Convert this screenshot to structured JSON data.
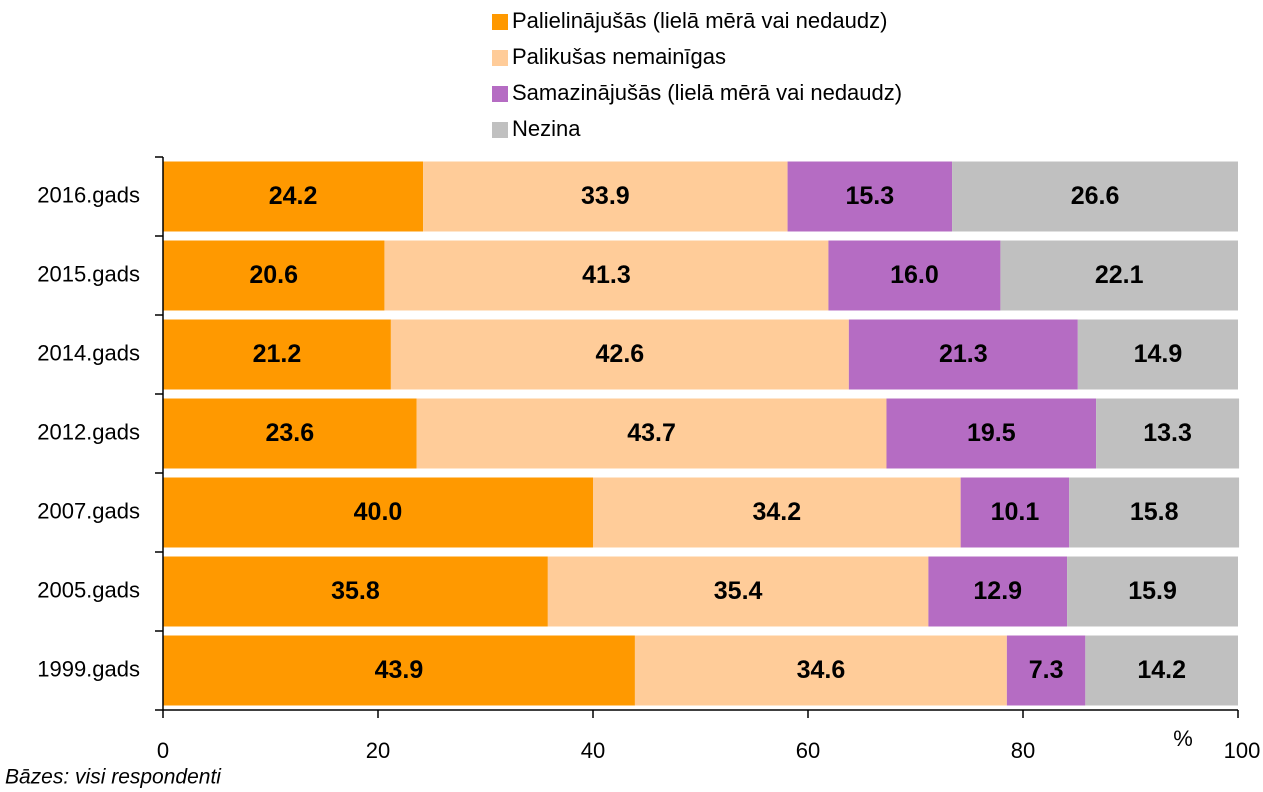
{
  "chart_data": {
    "type": "stacked-barh",
    "categories": [
      "2016.gads",
      "2015.gads",
      "2014.gads",
      "2012.gads",
      "2007.gads",
      "2005.gads",
      "1999.gads"
    ],
    "series": [
      {
        "name": "Palielinājušās (lielā mērā vai nedaudz)",
        "color": "#FF9900",
        "values": [
          24.2,
          20.6,
          21.2,
          23.6,
          40.0,
          35.8,
          43.9
        ],
        "value_labels": [
          "24.2",
          "20.6",
          "21.2",
          "23.6",
          "40.0",
          "35.8",
          "43.9"
        ]
      },
      {
        "name": "Palikušas nemainīgas",
        "color": "#FFCC99",
        "values": [
          33.9,
          41.3,
          42.6,
          43.7,
          34.2,
          35.4,
          34.6
        ],
        "value_labels": [
          "33.9",
          "41.3",
          "42.6",
          "43.7",
          "34.2",
          "35.4",
          "34.6"
        ]
      },
      {
        "name": "Samazinājušās (lielā mērā vai nedaudz)",
        "color": "#B56CC3",
        "values": [
          15.3,
          16.0,
          21.3,
          19.5,
          10.1,
          12.9,
          7.3
        ],
        "value_labels": [
          "15.3",
          "16.0",
          "21.3",
          "19.5",
          "10.1",
          "12.9",
          "7.3"
        ]
      },
      {
        "name": "Nezina",
        "color": "#C0C0C0",
        "values": [
          26.6,
          22.1,
          14.9,
          13.3,
          15.8,
          15.9,
          14.2
        ],
        "value_labels": [
          "26.6",
          "22.1",
          "14.9",
          "13.3",
          "15.8",
          "15.9",
          "14.2"
        ]
      }
    ],
    "xlim": [
      0,
      100
    ],
    "xticks": [
      0,
      20,
      40,
      60,
      80,
      100
    ],
    "x_axis_label": "%",
    "note": "Bāzes: visi respondenti",
    "legend": "top"
  }
}
